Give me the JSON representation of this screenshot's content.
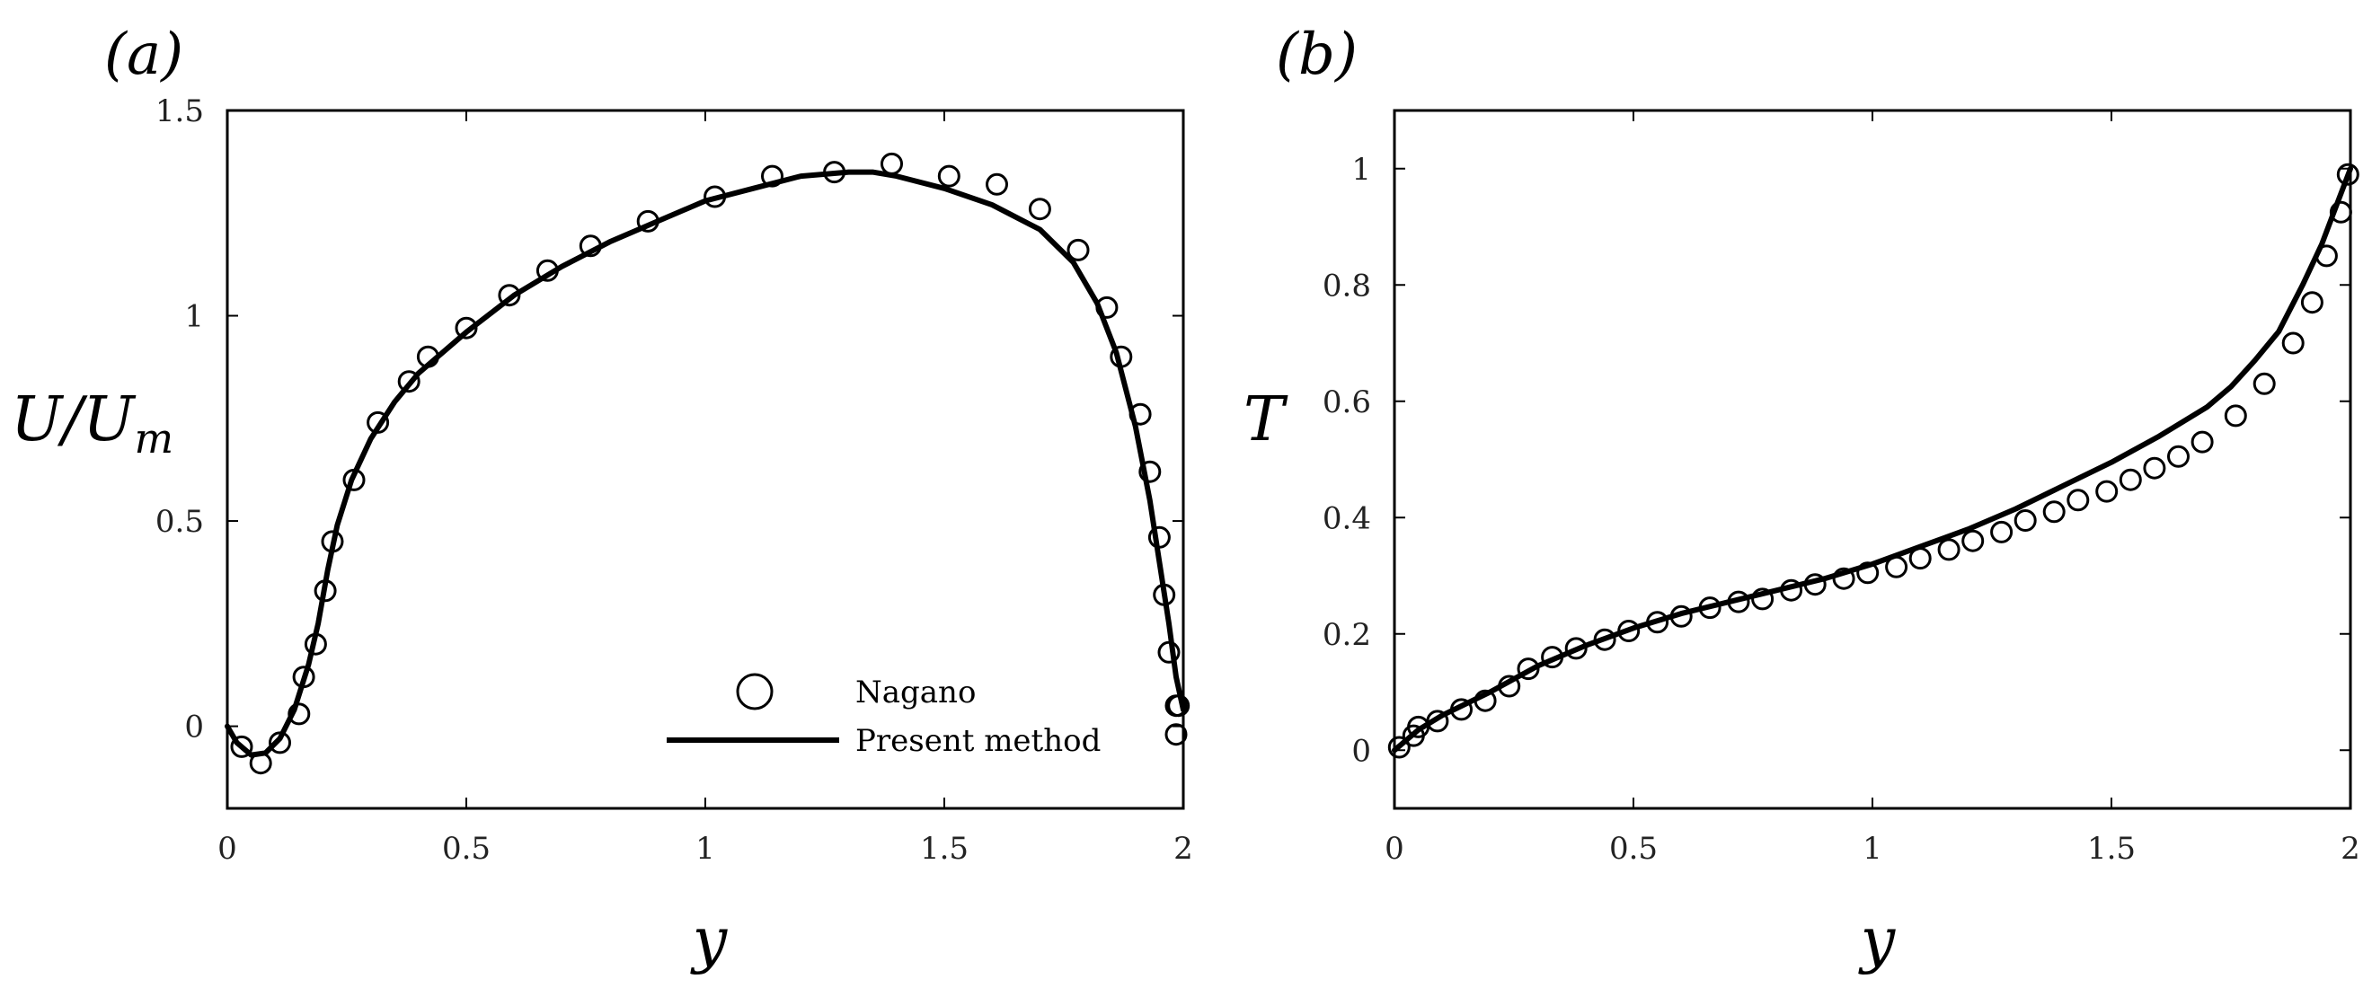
{
  "chart_data": [
    {
      "type": "line",
      "panel_label": "(a)",
      "xlabel": "y",
      "ylabel": "U/U_m",
      "ylabel_parts": {
        "main": "U/U",
        "sub": "m"
      },
      "xlim": [
        0,
        2
      ],
      "ylim": [
        -0.2,
        1.5
      ],
      "xticks": [
        0,
        0.5,
        1,
        1.5,
        2
      ],
      "xtick_labels": [
        "0",
        "0.5",
        "1",
        "1.5",
        "2"
      ],
      "yticks": [
        0,
        0.5,
        1,
        1.5
      ],
      "ytick_labels": [
        "0",
        "0.5",
        "1",
        "1.5"
      ],
      "grid": false,
      "legend_position": "bottom-right",
      "series": [
        {
          "name": "Nagano",
          "style": "markers",
          "marker": "circle",
          "x": [
            0.03,
            0.07,
            0.11,
            0.15,
            0.16,
            0.185,
            0.205,
            0.22,
            0.265,
            0.315,
            0.38,
            0.42,
            0.5,
            0.59,
            0.67,
            0.76,
            0.88,
            1.02,
            1.14,
            1.27,
            1.39,
            1.51,
            1.61,
            1.7,
            1.78,
            1.84,
            1.87,
            1.91,
            1.93,
            1.95,
            1.96,
            1.97,
            1.985,
            1.99,
            1.985
          ],
          "y": [
            -0.05,
            -0.09,
            -0.04,
            0.03,
            0.12,
            0.2,
            0.33,
            0.45,
            0.6,
            0.74,
            0.84,
            0.9,
            0.97,
            1.05,
            1.11,
            1.17,
            1.23,
            1.29,
            1.34,
            1.35,
            1.37,
            1.34,
            1.32,
            1.26,
            1.16,
            1.02,
            0.9,
            0.76,
            0.62,
            0.46,
            0.32,
            0.18,
            0.05,
            0.05,
            -0.02
          ]
        },
        {
          "name": "Present method",
          "style": "line",
          "x": [
            0,
            0.02,
            0.05,
            0.08,
            0.11,
            0.14,
            0.17,
            0.19,
            0.21,
            0.23,
            0.26,
            0.3,
            0.35,
            0.4,
            0.5,
            0.6,
            0.7,
            0.8,
            0.9,
            1.0,
            1.1,
            1.2,
            1.3,
            1.35,
            1.4,
            1.5,
            1.6,
            1.7,
            1.77,
            1.82,
            1.86,
            1.9,
            1.93,
            1.95,
            1.97,
            1.985,
            2.0
          ],
          "y": [
            0,
            -0.04,
            -0.07,
            -0.065,
            -0.03,
            0.04,
            0.15,
            0.25,
            0.38,
            0.49,
            0.6,
            0.7,
            0.79,
            0.86,
            0.96,
            1.05,
            1.12,
            1.18,
            1.23,
            1.28,
            1.31,
            1.34,
            1.35,
            1.35,
            1.34,
            1.31,
            1.27,
            1.21,
            1.13,
            1.03,
            0.91,
            0.73,
            0.55,
            0.4,
            0.25,
            0.12,
            0.04
          ]
        }
      ]
    },
    {
      "type": "line",
      "panel_label": "(b)",
      "xlabel": "y",
      "ylabel": "T",
      "xlim": [
        0,
        2
      ],
      "ylim": [
        -0.1,
        1.1
      ],
      "xticks": [
        0,
        0.5,
        1,
        1.5,
        2
      ],
      "xtick_labels": [
        "0",
        "0.5",
        "1",
        "1.5",
        "2"
      ],
      "yticks": [
        0,
        0.2,
        0.4,
        0.6,
        0.8,
        1
      ],
      "ytick_labels": [
        "0",
        "0.2",
        "0.4",
        "0.6",
        "0.8",
        "1"
      ],
      "grid": false,
      "series": [
        {
          "name": "Nagano",
          "style": "markers",
          "marker": "circle",
          "x": [
            0.01,
            0.04,
            0.05,
            0.09,
            0.14,
            0.19,
            0.24,
            0.28,
            0.33,
            0.38,
            0.44,
            0.49,
            0.55,
            0.6,
            0.66,
            0.72,
            0.77,
            0.83,
            0.88,
            0.94,
            0.99,
            1.05,
            1.1,
            1.16,
            1.21,
            1.27,
            1.32,
            1.38,
            1.43,
            1.49,
            1.54,
            1.59,
            1.64,
            1.69,
            1.76,
            1.82,
            1.88,
            1.92,
            1.95,
            1.98,
            1.995
          ],
          "y": [
            0.005,
            0.025,
            0.04,
            0.05,
            0.07,
            0.085,
            0.11,
            0.14,
            0.16,
            0.175,
            0.19,
            0.205,
            0.22,
            0.23,
            0.245,
            0.255,
            0.26,
            0.275,
            0.285,
            0.295,
            0.305,
            0.315,
            0.33,
            0.345,
            0.36,
            0.375,
            0.395,
            0.41,
            0.43,
            0.445,
            0.465,
            0.485,
            0.505,
            0.53,
            0.575,
            0.63,
            0.7,
            0.77,
            0.85,
            0.925,
            0.99
          ]
        },
        {
          "name": "Present method",
          "style": "line",
          "x": [
            0,
            0.05,
            0.1,
            0.2,
            0.3,
            0.4,
            0.5,
            0.6,
            0.7,
            0.8,
            0.9,
            1.0,
            1.1,
            1.2,
            1.3,
            1.4,
            1.5,
            1.6,
            1.7,
            1.75,
            1.8,
            1.85,
            1.9,
            1.94,
            1.97,
            2.0
          ],
          "y": [
            0,
            0.035,
            0.06,
            0.1,
            0.145,
            0.18,
            0.21,
            0.235,
            0.255,
            0.275,
            0.295,
            0.32,
            0.35,
            0.38,
            0.415,
            0.455,
            0.495,
            0.54,
            0.59,
            0.625,
            0.67,
            0.72,
            0.8,
            0.87,
            0.935,
            1.0
          ]
        }
      ]
    }
  ]
}
